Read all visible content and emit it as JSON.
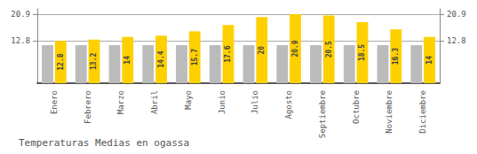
{
  "chart_data": {
    "type": "bar",
    "title": "Temperaturas Medias en ogassa",
    "categories": [
      "Enero",
      "Febrero",
      "Marzo",
      "Abril",
      "Mayo",
      "Junio",
      "Julio",
      "Agosto",
      "Septiembre",
      "Octubre",
      "Noviembre",
      "Diciembre"
    ],
    "series": [
      {
        "color": "#BBBBBB",
        "values": [
          11.5,
          11.5,
          11.5,
          11.5,
          11.5,
          11.5,
          11.5,
          11.5,
          11.5,
          11.5,
          11.5,
          11.5
        ]
      },
      {
        "color": "#FFD000",
        "data_labels": true,
        "values": [
          12.8,
          13.2,
          14.0,
          14.4,
          15.7,
          17.6,
          20.0,
          20.9,
          20.5,
          18.5,
          16.3,
          14.0
        ]
      }
    ],
    "ylim": [
      0,
      22.5
    ],
    "yticks": [
      12.8,
      20.9
    ],
    "y2lim": [
      0,
      22.5
    ],
    "y2ticks": [
      12.8,
      20.9
    ],
    "grid": true
  }
}
